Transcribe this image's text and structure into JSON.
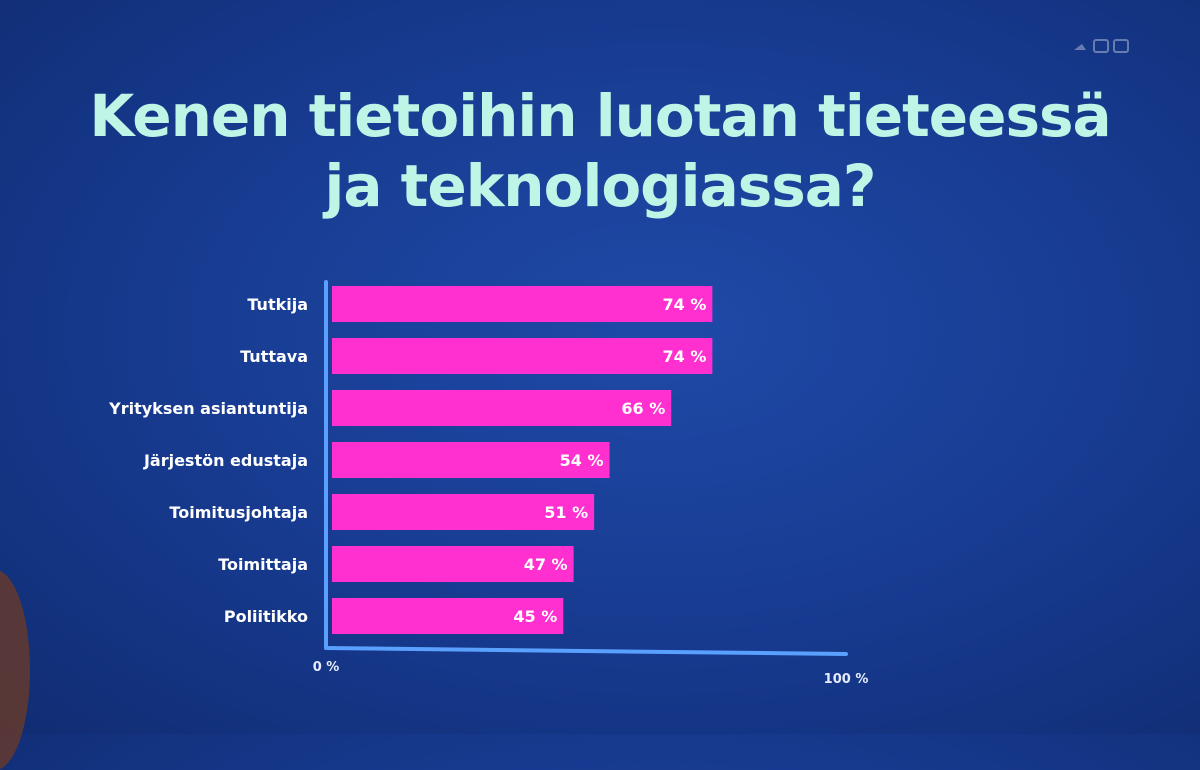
{
  "title_lines": [
    "Kenen tietoihin luotan tieteessä",
    "ja teknologiassa?"
  ],
  "chart_data": {
    "type": "bar",
    "orientation": "horizontal",
    "categories": [
      "Tutkija",
      "Tuttava",
      "Yrityksen asiantuntija",
      "Järjestön edustaja",
      "Toimitusjohtaja",
      "Toimittaja",
      "Poliitikko"
    ],
    "values": [
      74,
      74,
      66,
      54,
      51,
      47,
      45
    ],
    "value_labels": [
      "74 %",
      "74 %",
      "66 %",
      "54 %",
      "51 %",
      "47 %",
      "45 %"
    ],
    "xlim": [
      0,
      100
    ],
    "tick_labels": [
      "0 %",
      "100 %"
    ],
    "grid": false,
    "legend": "none"
  },
  "colors": {
    "background": "#173a8f",
    "bar": "#ff2fd0",
    "title": "#bff5e6",
    "axis": "#5aa0ff"
  }
}
